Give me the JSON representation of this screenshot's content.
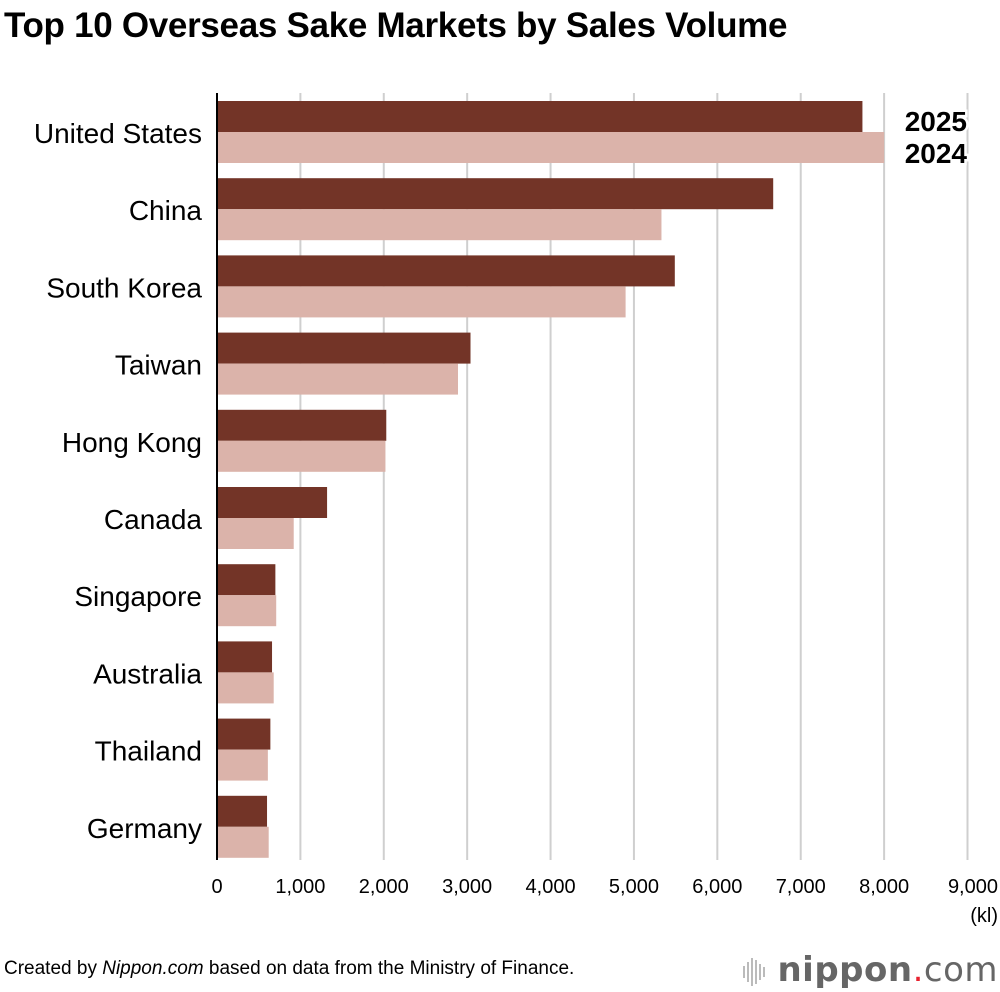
{
  "title": "Top 10 Overseas Sake Markets by Sales Volume",
  "chart_data": {
    "type": "bar",
    "orientation": "horizontal",
    "title": "Top 10 Overseas Sake Markets by Sales Volume",
    "categories": [
      "United States",
      "China",
      "South Korea",
      "Taiwan",
      "Hong Kong",
      "Canada",
      "Singapore",
      "Australia",
      "Thailand",
      "Germany"
    ],
    "series": [
      {
        "name": "2025",
        "color": "#733427",
        "values": [
          7740,
          6670,
          5490,
          3040,
          2030,
          1320,
          700,
          660,
          640,
          600
        ]
      },
      {
        "name": "2024",
        "color": "#dbb3aa",
        "values": [
          8000,
          5330,
          4900,
          2890,
          2020,
          920,
          710,
          680,
          610,
          620
        ]
      }
    ],
    "xlim": [
      0,
      9000
    ],
    "ticks": [
      0,
      1000,
      2000,
      3000,
      4000,
      5000,
      6000,
      7000,
      8000,
      9000
    ],
    "tick_labels": [
      "0",
      "1,000",
      "2,000",
      "3,000",
      "4,000",
      "5,000",
      "6,000",
      "7,000",
      "8,000",
      "9,000"
    ],
    "xlabel": "(kl)",
    "grid": true,
    "legend": "top-right"
  },
  "footer": {
    "prefix": "Created by ",
    "source": "Nippon.com",
    "suffix": " based on data from the Ministry of Finance."
  },
  "logo": {
    "name": "nippon",
    "dot": ".",
    "tld": "com"
  }
}
